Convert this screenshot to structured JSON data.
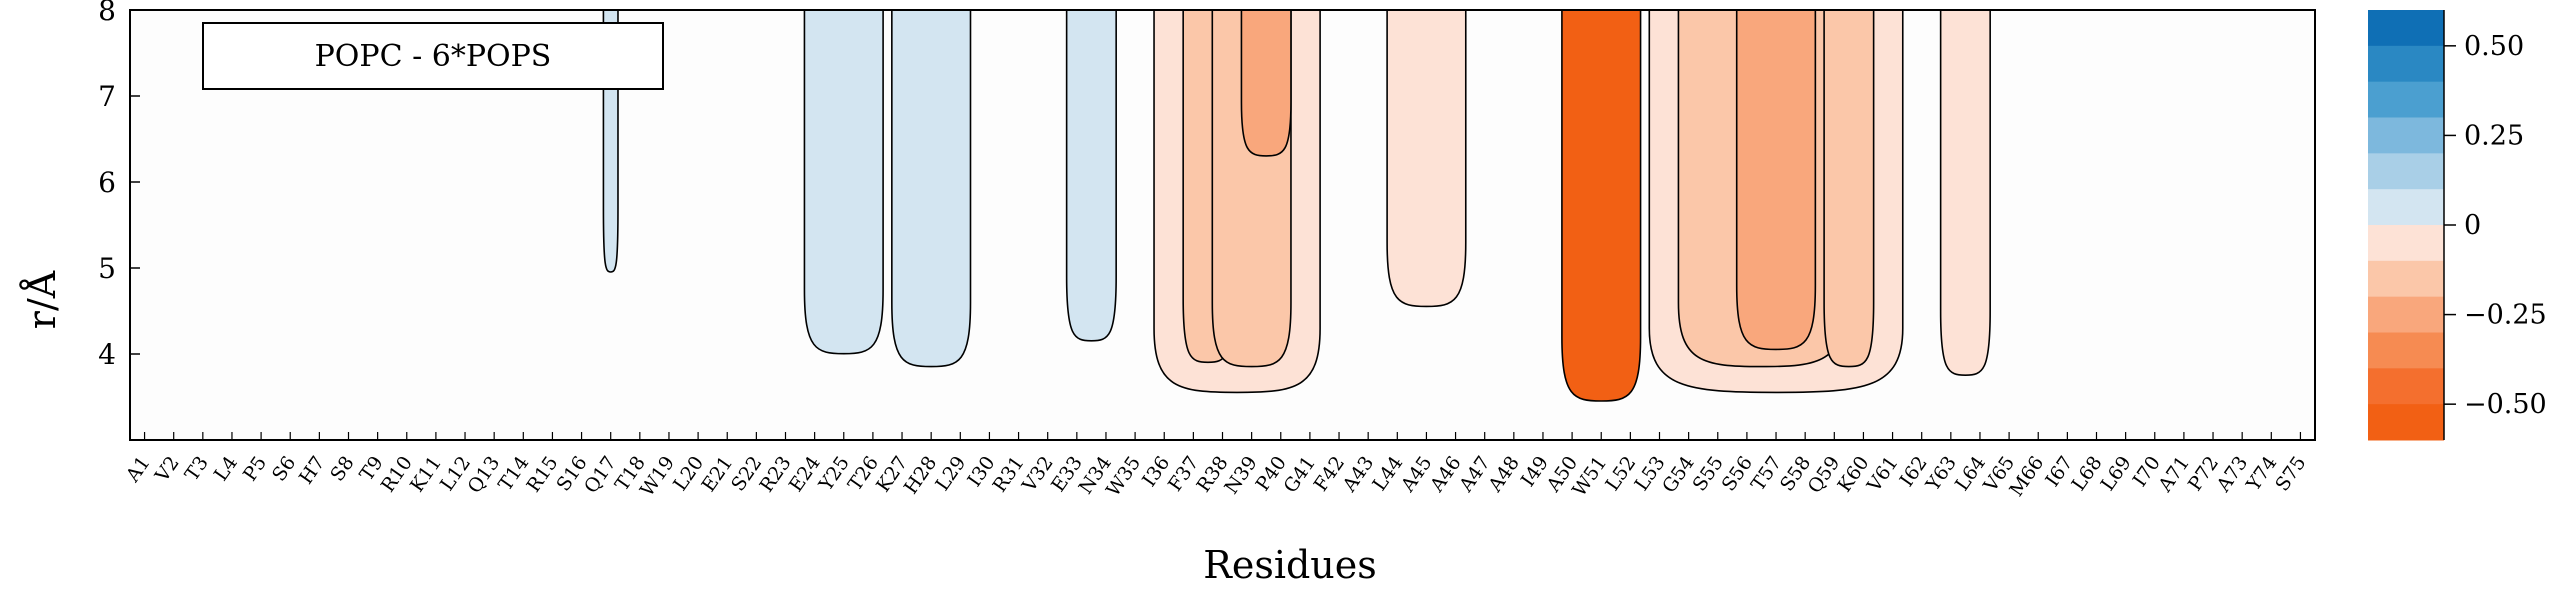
{
  "chart_data": {
    "type": "heatmap",
    "subtype": "contour",
    "legend_label": "POPC - 6*POPS",
    "xlabel": "Residues",
    "ylabel": "r/Å",
    "ylim": [
      3.0,
      8.0
    ],
    "y_ticks": [
      "4",
      "5",
      "6",
      "7",
      "8"
    ],
    "y_tick_values": [
      4,
      5,
      6,
      7,
      8
    ],
    "categories": [
      "A1",
      "V2",
      "T3",
      "L4",
      "P5",
      "S6",
      "H7",
      "S8",
      "T9",
      "R10",
      "K11",
      "L12",
      "Q13",
      "T14",
      "R15",
      "S16",
      "Q17",
      "T18",
      "W19",
      "L20",
      "E21",
      "S22",
      "R23",
      "E24",
      "Y25",
      "T26",
      "K27",
      "H28",
      "L29",
      "I30",
      "R31",
      "V32",
      "E33",
      "N34",
      "W35",
      "I36",
      "F37",
      "R38",
      "N39",
      "P40",
      "G41",
      "F42",
      "A43",
      "L44",
      "A45",
      "A46",
      "A47",
      "A48",
      "I49",
      "A50",
      "W51",
      "L52",
      "L53",
      "G54",
      "S55",
      "S56",
      "T57",
      "S58",
      "Q59",
      "K60",
      "V61",
      "I62",
      "Y63",
      "L64",
      "V65",
      "M66",
      "I67",
      "L68",
      "L69",
      "I70",
      "A71",
      "P72",
      "A73",
      "Y74",
      "S75"
    ],
    "colorbar": {
      "ticks": [
        "0.50",
        "0.25",
        "0",
        "−0.25",
        "−0.50"
      ],
      "tick_values": [
        0.5,
        0.25,
        0,
        -0.25,
        -0.5
      ],
      "range": [
        -0.6,
        0.6
      ],
      "levels": [
        0.6,
        0.5,
        0.4,
        0.3,
        0.2,
        0.1,
        0.0,
        -0.1,
        -0.2,
        -0.3,
        -0.4,
        -0.5,
        -0.6
      ],
      "colors": [
        "#0f6fb5",
        "#2a88c3",
        "#4b9fd0",
        "#7db8dd",
        "#a9cfe7",
        "#d3e5f1",
        "#ffffff",
        "#fde2d6",
        "#fbc7a9",
        "#f9a77c",
        "#f68b52",
        "#f46f2e",
        "#f26014"
      ]
    },
    "regions": [
      {
        "residues": [
          "Q17"
        ],
        "sign": "positive",
        "value": 0.05,
        "r_min": 5.0
      },
      {
        "residues": [
          "E24",
          "Y25",
          "T26"
        ],
        "sign": "positive",
        "value": 0.05,
        "r_min": 4.05
      },
      {
        "residues": [
          "K27",
          "H28",
          "L29"
        ],
        "sign": "positive",
        "value": 0.05,
        "r_min": 3.9
      },
      {
        "residues": [
          "E33",
          "N34"
        ],
        "sign": "positive",
        "value": 0.05,
        "r_min": 4.2
      },
      {
        "residues": [
          "I36",
          "F37",
          "R38",
          "N39",
          "P40",
          "G41"
        ],
        "sign": "negative",
        "value": -0.05,
        "r_min": 3.6
      },
      {
        "residues": [
          "F37",
          "R38"
        ],
        "sign": "negative",
        "value": -0.15,
        "r_min": 3.95
      },
      {
        "residues": [
          "R38",
          "N39",
          "P40"
        ],
        "sign": "negative",
        "value": -0.15,
        "r_min": 3.9
      },
      {
        "residues": [
          "N39",
          "P40"
        ],
        "sign": "negative",
        "value": -0.25,
        "r_min": 6.35
      },
      {
        "residues": [
          "L44",
          "A45",
          "A46"
        ],
        "sign": "negative",
        "value": -0.05,
        "r_min": 4.6
      },
      {
        "residues": [
          "A50",
          "W51",
          "L52"
        ],
        "sign": "negative",
        "value": -0.55,
        "r_min": 3.5
      },
      {
        "residues": [
          "L53",
          "G54",
          "S55",
          "S56",
          "T57",
          "S58",
          "Q59",
          "K60",
          "V61"
        ],
        "sign": "negative",
        "value": -0.05,
        "r_min": 3.6
      },
      {
        "residues": [
          "G54",
          "S55",
          "S56",
          "T57",
          "S58",
          "Q59"
        ],
        "sign": "negative",
        "value": -0.15,
        "r_min": 3.9
      },
      {
        "residues": [
          "S56",
          "T57",
          "S58"
        ],
        "sign": "negative",
        "value": -0.3,
        "r_min": 4.1
      },
      {
        "residues": [
          "Q59",
          "K60"
        ],
        "sign": "negative",
        "value": -0.15,
        "r_min": 3.9
      },
      {
        "residues": [
          "Y63",
          "L64"
        ],
        "sign": "negative",
        "value": -0.05,
        "r_min": 3.8
      }
    ]
  }
}
